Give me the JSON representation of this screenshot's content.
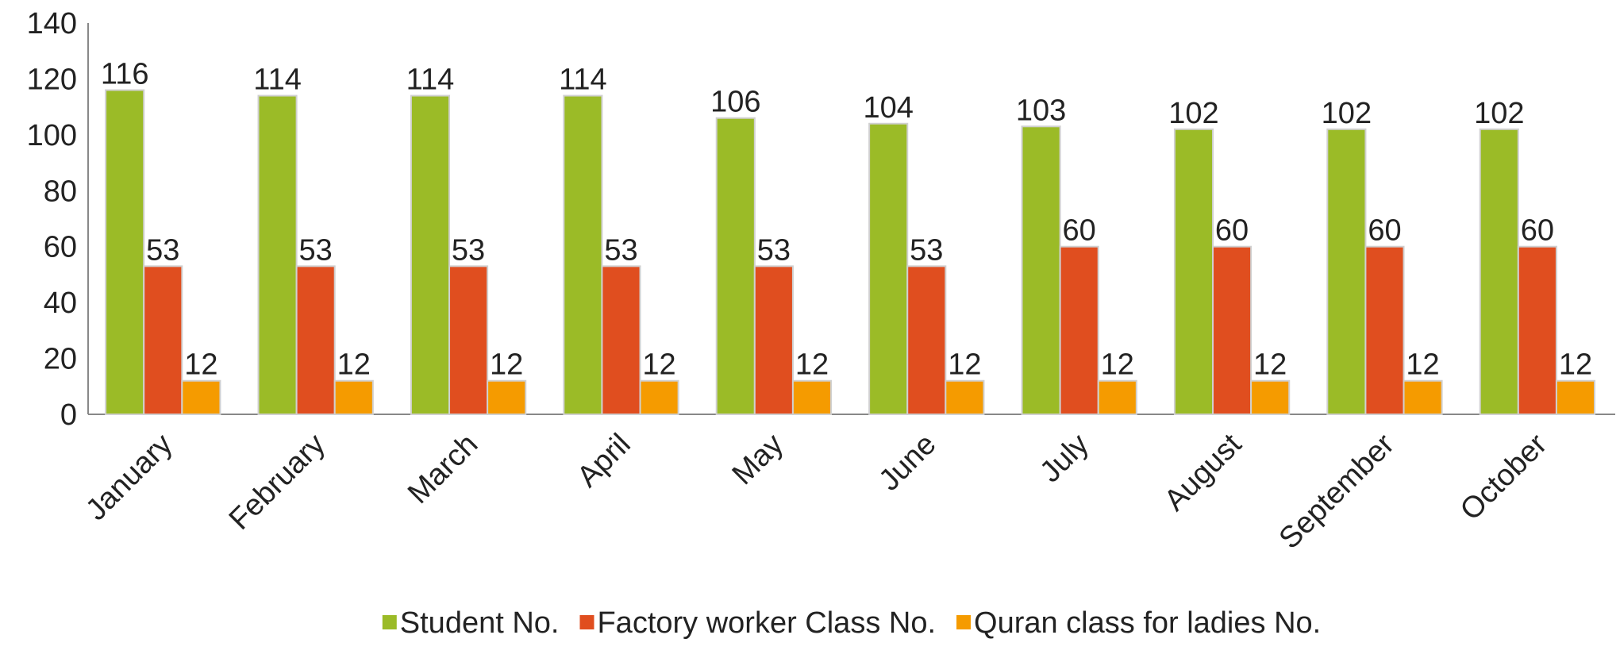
{
  "chart_data": {
    "type": "bar",
    "categories": [
      "January",
      "February",
      "March",
      "April",
      "May",
      "June",
      "July",
      "August",
      "September",
      "October"
    ],
    "series": [
      {
        "name": "Student No.",
        "color": "#9bbb27",
        "values": [
          116,
          114,
          114,
          114,
          106,
          104,
          103,
          102,
          102,
          102
        ]
      },
      {
        "name": "Factory worker Class No.",
        "color": "#e04e1f",
        "values": [
          53,
          53,
          53,
          53,
          53,
          53,
          60,
          60,
          60,
          60
        ]
      },
      {
        "name": "Quran class for ladies No.",
        "color": "#f59b00",
        "values": [
          12,
          12,
          12,
          12,
          12,
          12,
          12,
          12,
          12,
          12
        ]
      }
    ],
    "ylim": [
      0,
      140
    ],
    "yticks": [
      0,
      20,
      40,
      60,
      80,
      100,
      120,
      140
    ],
    "grid": false,
    "legend": "bottom"
  }
}
